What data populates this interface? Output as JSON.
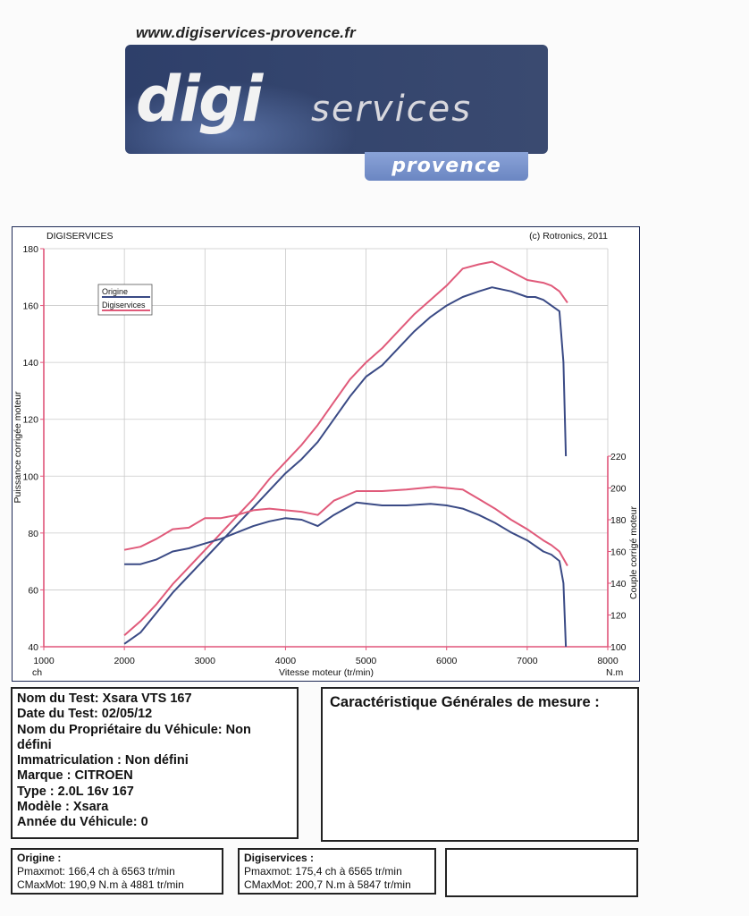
{
  "header": {
    "url": "www.digiservices-provence.fr",
    "logo_main": "digi",
    "logo_secondary": "services",
    "logo_sub": "provence"
  },
  "chart_header": {
    "left": "DIGISERVICES",
    "right": "(c) Rotronics, 2011"
  },
  "chart_data": {
    "type": "line",
    "xlabel": "Vitesse moteur (tr/min)",
    "ylabel_left": "Puissance corrigée moteur",
    "ylabel_right": "Couple corrigé moteur",
    "x_unit": "ch",
    "y_right_unit": "N.m",
    "xlim": [
      1000,
      8000
    ],
    "ylim_left": [
      40,
      180
    ],
    "ylim_right": [
      100,
      220
    ],
    "x_ticks": [
      1000,
      2000,
      3000,
      4000,
      5000,
      6000,
      7000,
      8000
    ],
    "y_ticks_left": [
      40,
      60,
      80,
      100,
      120,
      140,
      160,
      180
    ],
    "y_ticks_right": [
      100,
      120,
      140,
      160,
      180,
      200,
      220
    ],
    "grid": true,
    "legend_position": "top-left",
    "series": [
      {
        "name": "Origine",
        "quantity": "power",
        "axis": "left",
        "color": "#3a4a85",
        "x": [
          2000,
          2200,
          2400,
          2600,
          2800,
          3000,
          3200,
          3400,
          3600,
          3800,
          4000,
          4200,
          4400,
          4600,
          4800,
          5000,
          5200,
          5400,
          5600,
          5800,
          6000,
          6200,
          6400,
          6563,
          6800,
          7000,
          7100,
          7200,
          7300,
          7400,
          7450,
          7480
        ],
        "values": [
          41,
          45,
          52,
          59,
          65,
          71,
          77,
          83,
          89,
          95,
          101,
          106,
          112,
          120,
          128,
          135,
          139,
          145,
          151,
          156,
          160,
          163,
          165,
          166.4,
          165,
          163,
          163,
          162,
          160,
          158,
          140,
          107
        ]
      },
      {
        "name": "Digiservices",
        "quantity": "power",
        "axis": "left",
        "color": "#e05a7a",
        "x": [
          2000,
          2200,
          2400,
          2600,
          2800,
          3000,
          3200,
          3400,
          3600,
          3800,
          4000,
          4200,
          4400,
          4600,
          4800,
          5000,
          5200,
          5400,
          5600,
          5800,
          6000,
          6200,
          6400,
          6565,
          6800,
          7000,
          7200,
          7300,
          7400,
          7500
        ],
        "values": [
          44,
          49,
          55,
          62,
          68,
          74,
          80,
          86,
          92,
          99,
          105,
          111,
          118,
          126,
          134,
          140,
          145,
          151,
          157,
          162,
          167,
          173,
          174.5,
          175.4,
          172,
          169,
          168,
          167,
          165,
          161
        ]
      },
      {
        "name": "Origine",
        "quantity": "torque",
        "axis": "right",
        "color": "#3a4a85",
        "x": [
          2000,
          2200,
          2400,
          2600,
          2800,
          3000,
          3200,
          3400,
          3600,
          3800,
          4000,
          4200,
          4400,
          4600,
          4881,
          5200,
          5500,
          5800,
          6000,
          6200,
          6400,
          6600,
          6800,
          7000,
          7200,
          7300,
          7400,
          7450,
          7480
        ],
        "values": [
          152,
          152,
          155,
          160,
          162,
          165,
          168,
          172,
          176,
          179,
          181,
          180,
          176,
          183,
          190.9,
          189,
          189,
          190,
          189,
          187,
          183,
          178,
          172,
          167,
          160,
          158,
          154,
          140,
          100
        ]
      },
      {
        "name": "Digiservices",
        "quantity": "torque",
        "axis": "right",
        "color": "#e05a7a",
        "x": [
          2000,
          2200,
          2400,
          2600,
          2800,
          3000,
          3200,
          3400,
          3600,
          3800,
          4000,
          4200,
          4400,
          4600,
          4881,
          5200,
          5500,
          5847,
          6000,
          6200,
          6400,
          6600,
          6800,
          7000,
          7200,
          7300,
          7400,
          7500
        ],
        "values": [
          161,
          163,
          168,
          174,
          175,
          181,
          181,
          183,
          186,
          187,
          186,
          185,
          183,
          192,
          198,
          198,
          199,
          200.7,
          200,
          199,
          193,
          187,
          180,
          174,
          167,
          164,
          160,
          151
        ]
      }
    ]
  },
  "test_info": {
    "lines": [
      "Nom du Test: Xsara VTS 167",
      "Date du Test: 02/05/12",
      "Nom du Propriétaire du Véhicule: Non",
      "défini",
      "Immatriculation  : Non défini",
      "Marque  : CITROEN",
      "Type  : 2.0L 16v 167",
      "Modèle  : Xsara",
      "Année du Véhicule: 0"
    ]
  },
  "generales": {
    "title": "Caractéristique Générales de mesure :"
  },
  "results": {
    "origine": {
      "title": "Origine :",
      "pmax": "Pmaxmot: 166,4 ch à 6563 tr/min",
      "cmax": "CMaxMot: 190,9 N.m à 4881 tr/min"
    },
    "digiservices": {
      "title": "Digiservices :",
      "pmax": "Pmaxmot: 175,4 ch à 6565 tr/min",
      "cmax": "CMaxMot: 200,7 N.m à 5847 tr/min"
    }
  }
}
